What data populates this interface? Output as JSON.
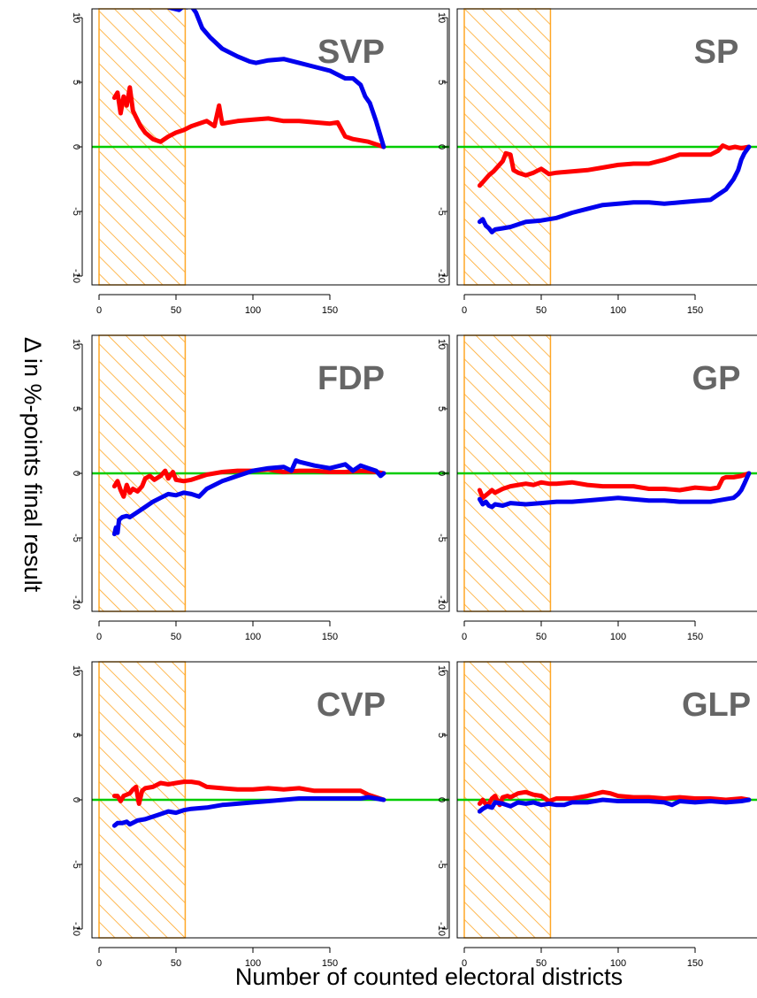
{
  "figure": {
    "xlabel": "Number of counted electoral districts",
    "ylabel": "Δ in %-points final result"
  },
  "colors": {
    "red_series": "#ff0000",
    "blue_series": "#0000ee",
    "zero_line": "#00cc00",
    "hatch": "#ffa726",
    "panel_label": "#666666",
    "axes": "#000000"
  },
  "chart_data": [
    {
      "type": "line",
      "title": "SVP",
      "xlim": [
        0,
        185
      ],
      "ylim": [
        -10,
        10
      ],
      "x_ticks": [
        0,
        50,
        100,
        150
      ],
      "y_ticks": [
        -10,
        -5,
        0,
        5,
        10
      ],
      "shaded_region": [
        0,
        56
      ],
      "reference_line": 0,
      "series": [
        {
          "color": "red",
          "x": [
            10,
            12,
            14,
            16,
            18,
            20,
            22,
            24,
            27,
            30,
            35,
            40,
            45,
            50,
            55,
            60,
            70,
            75,
            78,
            80,
            90,
            100,
            110,
            120,
            130,
            140,
            150,
            155,
            160,
            165,
            170,
            175,
            180,
            185
          ],
          "y": [
            3.8,
            4.2,
            2.6,
            3.9,
            3.2,
            4.6,
            2.8,
            2.3,
            1.6,
            1.1,
            0.6,
            0.4,
            0.8,
            1.1,
            1.3,
            1.6,
            2.0,
            1.6,
            3.2,
            1.8,
            2.0,
            2.1,
            2.2,
            2.0,
            2.0,
            1.9,
            1.8,
            1.9,
            0.8,
            0.6,
            0.5,
            0.4,
            0.2,
            0.0
          ]
        },
        {
          "color": "blue",
          "x": [
            45,
            52,
            55,
            57,
            60,
            63,
            67,
            72,
            80,
            90,
            98,
            102,
            110,
            120,
            130,
            140,
            150,
            160,
            165,
            170,
            173,
            176,
            180,
            183,
            185
          ],
          "y": [
            10.8,
            10.6,
            10.9,
            10.8,
            10.9,
            10.4,
            9.2,
            8.5,
            7.6,
            7.0,
            6.6,
            6.5,
            6.7,
            6.8,
            6.5,
            6.2,
            5.9,
            5.3,
            5.3,
            4.8,
            3.9,
            3.4,
            2.0,
            0.8,
            0.0
          ]
        }
      ]
    },
    {
      "type": "line",
      "title": "SP",
      "xlim": [
        0,
        185
      ],
      "ylim": [
        -10,
        10
      ],
      "x_ticks": [
        0,
        50,
        100,
        150
      ],
      "y_ticks": [
        -10,
        -5,
        0,
        5,
        10
      ],
      "shaded_region": [
        0,
        56
      ],
      "reference_line": 0,
      "series": [
        {
          "color": "red",
          "x": [
            10,
            13,
            16,
            19,
            22,
            25,
            27,
            30,
            32,
            35,
            40,
            45,
            50,
            55,
            60,
            70,
            80,
            90,
            100,
            110,
            120,
            130,
            140,
            150,
            160,
            165,
            168,
            172,
            176,
            180,
            185
          ],
          "y": [
            -3.0,
            -2.6,
            -2.2,
            -1.9,
            -1.5,
            -1.1,
            -0.5,
            -0.6,
            -1.8,
            -2.0,
            -2.2,
            -2.0,
            -1.7,
            -2.1,
            -2.0,
            -1.9,
            -1.8,
            -1.6,
            -1.4,
            -1.3,
            -1.3,
            -1.0,
            -0.6,
            -0.6,
            -0.6,
            -0.3,
            0.1,
            -0.1,
            0.0,
            -0.1,
            0.0
          ]
        },
        {
          "color": "blue",
          "x": [
            10,
            12,
            14,
            16,
            18,
            20,
            25,
            30,
            40,
            50,
            60,
            70,
            80,
            90,
            100,
            110,
            120,
            130,
            140,
            150,
            160,
            165,
            170,
            175,
            178,
            180,
            182,
            185
          ],
          "y": [
            -5.8,
            -5.6,
            -6.1,
            -6.3,
            -6.6,
            -6.4,
            -6.3,
            -6.2,
            -5.8,
            -5.7,
            -5.5,
            -5.1,
            -4.8,
            -4.5,
            -4.4,
            -4.3,
            -4.3,
            -4.4,
            -4.3,
            -4.2,
            -4.1,
            -3.7,
            -3.3,
            -2.5,
            -1.8,
            -1.0,
            -0.5,
            0.0
          ]
        }
      ]
    },
    {
      "type": "line",
      "title": "FDP",
      "xlim": [
        0,
        185
      ],
      "ylim": [
        -10,
        10
      ],
      "x_ticks": [
        0,
        50,
        100,
        150
      ],
      "y_ticks": [
        -10,
        -5,
        0,
        5,
        10
      ],
      "shaded_region": [
        0,
        56
      ],
      "reference_line": 0,
      "series": [
        {
          "color": "red",
          "x": [
            10,
            12,
            14,
            16,
            18,
            20,
            22,
            25,
            28,
            30,
            33,
            36,
            40,
            43,
            45,
            48,
            50,
            55,
            60,
            70,
            80,
            90,
            100,
            110,
            120,
            130,
            140,
            150,
            160,
            170,
            180,
            185
          ],
          "y": [
            -1.0,
            -0.6,
            -1.3,
            -1.8,
            -0.9,
            -1.5,
            -1.2,
            -1.4,
            -1.0,
            -0.4,
            -0.2,
            -0.5,
            -0.2,
            0.2,
            -0.4,
            0.1,
            -0.5,
            -0.6,
            -0.5,
            -0.1,
            0.1,
            0.2,
            0.2,
            0.3,
            0.1,
            0.2,
            0.2,
            0.1,
            0.1,
            0.2,
            0.1,
            0.0
          ]
        },
        {
          "color": "blue",
          "x": [
            10,
            11,
            12,
            13,
            15,
            18,
            20,
            25,
            30,
            35,
            40,
            45,
            50,
            55,
            60,
            65,
            70,
            80,
            90,
            100,
            110,
            120,
            125,
            128,
            130,
            140,
            150,
            160,
            165,
            170,
            175,
            180,
            183,
            185
          ],
          "y": [
            -4.7,
            -4.2,
            -4.6,
            -3.6,
            -3.4,
            -3.3,
            -3.4,
            -3.0,
            -2.6,
            -2.2,
            -1.9,
            -1.6,
            -1.7,
            -1.5,
            -1.6,
            -1.8,
            -1.2,
            -0.6,
            -0.2,
            0.2,
            0.4,
            0.5,
            0.2,
            1.0,
            0.9,
            0.6,
            0.4,
            0.7,
            0.2,
            0.6,
            0.4,
            0.2,
            -0.2,
            0.0
          ]
        }
      ]
    },
    {
      "type": "line",
      "title": "GP",
      "xlim": [
        0,
        185
      ],
      "ylim": [
        -10,
        10
      ],
      "x_ticks": [
        0,
        50,
        100,
        150
      ],
      "y_ticks": [
        -10,
        -5,
        0,
        5,
        10
      ],
      "shaded_region": [
        0,
        56
      ],
      "reference_line": 0,
      "series": [
        {
          "color": "red",
          "x": [
            10,
            12,
            15,
            18,
            20,
            25,
            30,
            35,
            40,
            45,
            50,
            55,
            60,
            70,
            80,
            90,
            100,
            110,
            120,
            130,
            140,
            150,
            160,
            165,
            168,
            170,
            175,
            180,
            185
          ],
          "y": [
            -1.3,
            -1.9,
            -1.6,
            -1.3,
            -1.5,
            -1.2,
            -1.0,
            -0.9,
            -0.8,
            -0.9,
            -0.7,
            -0.8,
            -0.8,
            -0.7,
            -0.9,
            -1.0,
            -1.0,
            -1.0,
            -1.2,
            -1.2,
            -1.3,
            -1.1,
            -1.2,
            -1.1,
            -0.4,
            -0.3,
            -0.3,
            -0.2,
            0.0
          ]
        },
        {
          "color": "blue",
          "x": [
            10,
            12,
            14,
            16,
            18,
            20,
            25,
            30,
            40,
            50,
            60,
            70,
            80,
            90,
            100,
            110,
            120,
            130,
            140,
            150,
            160,
            165,
            170,
            175,
            178,
            180,
            182,
            185
          ],
          "y": [
            -2.0,
            -2.4,
            -2.2,
            -2.5,
            -2.6,
            -2.4,
            -2.5,
            -2.3,
            -2.4,
            -2.3,
            -2.2,
            -2.2,
            -2.1,
            -2.0,
            -1.9,
            -2.0,
            -2.1,
            -2.1,
            -2.2,
            -2.2,
            -2.2,
            -2.1,
            -2.0,
            -1.9,
            -1.6,
            -1.3,
            -0.8,
            0.0
          ]
        }
      ]
    },
    {
      "type": "line",
      "title": "CVP",
      "xlim": [
        0,
        185
      ],
      "ylim": [
        -10,
        10
      ],
      "x_ticks": [
        0,
        50,
        100,
        150
      ],
      "y_ticks": [
        -10,
        -5,
        0,
        5,
        10
      ],
      "shaded_region": [
        0,
        56
      ],
      "reference_line": 0,
      "series": [
        {
          "color": "red",
          "x": [
            10,
            12,
            14,
            16,
            18,
            20,
            22,
            24,
            26,
            28,
            30,
            35,
            40,
            45,
            50,
            55,
            60,
            65,
            70,
            80,
            90,
            100,
            110,
            120,
            130,
            140,
            150,
            160,
            170,
            175,
            180,
            185
          ],
          "y": [
            0.3,
            0.3,
            -0.1,
            0.3,
            0.4,
            0.5,
            0.8,
            1.0,
            -0.3,
            0.7,
            0.9,
            1.0,
            1.3,
            1.2,
            1.3,
            1.4,
            1.4,
            1.3,
            1.0,
            0.9,
            0.8,
            0.8,
            0.9,
            0.8,
            0.9,
            0.7,
            0.7,
            0.7,
            0.7,
            0.4,
            0.2,
            0.0
          ]
        },
        {
          "color": "blue",
          "x": [
            10,
            12,
            15,
            18,
            20,
            25,
            30,
            35,
            40,
            45,
            50,
            55,
            60,
            70,
            80,
            90,
            100,
            110,
            120,
            130,
            140,
            150,
            160,
            170,
            175,
            180,
            185
          ],
          "y": [
            -2.0,
            -1.8,
            -1.8,
            -1.7,
            -1.9,
            -1.6,
            -1.5,
            -1.3,
            -1.1,
            -0.9,
            -1.0,
            -0.8,
            -0.7,
            -0.6,
            -0.4,
            -0.3,
            -0.2,
            -0.1,
            0.0,
            0.1,
            0.1,
            0.1,
            0.1,
            0.1,
            0.2,
            0.1,
            0.0
          ]
        }
      ]
    },
    {
      "type": "line",
      "title": "GLP",
      "xlim": [
        0,
        185
      ],
      "ylim": [
        -10,
        10
      ],
      "x_ticks": [
        0,
        50,
        100,
        150
      ],
      "y_ticks": [
        -10,
        -5,
        0,
        5,
        10
      ],
      "shaded_region": [
        0,
        56
      ],
      "reference_line": 0,
      "series": [
        {
          "color": "red",
          "x": [
            10,
            12,
            15,
            18,
            20,
            23,
            25,
            28,
            30,
            35,
            40,
            45,
            50,
            55,
            60,
            70,
            80,
            90,
            95,
            100,
            110,
            120,
            130,
            140,
            150,
            160,
            170,
            180,
            185
          ],
          "y": [
            -0.3,
            0.0,
            -0.5,
            0.1,
            0.3,
            -0.4,
            0.2,
            0.3,
            0.2,
            0.5,
            0.6,
            0.4,
            0.3,
            -0.1,
            0.1,
            0.1,
            0.3,
            0.6,
            0.5,
            0.3,
            0.2,
            0.2,
            0.1,
            0.2,
            0.1,
            0.1,
            0.0,
            0.1,
            0.0
          ]
        },
        {
          "color": "blue",
          "x": [
            10,
            12,
            15,
            18,
            20,
            25,
            30,
            35,
            40,
            45,
            50,
            55,
            60,
            65,
            70,
            80,
            90,
            100,
            110,
            120,
            130,
            135,
            140,
            150,
            160,
            170,
            180,
            185
          ],
          "y": [
            -0.9,
            -0.7,
            -0.5,
            -0.6,
            -0.2,
            -0.3,
            -0.5,
            -0.2,
            -0.3,
            -0.2,
            -0.4,
            -0.3,
            -0.4,
            -0.4,
            -0.2,
            -0.2,
            0.0,
            -0.1,
            -0.1,
            -0.1,
            -0.2,
            -0.4,
            -0.1,
            -0.2,
            -0.1,
            -0.2,
            -0.1,
            0.0
          ]
        }
      ]
    }
  ]
}
